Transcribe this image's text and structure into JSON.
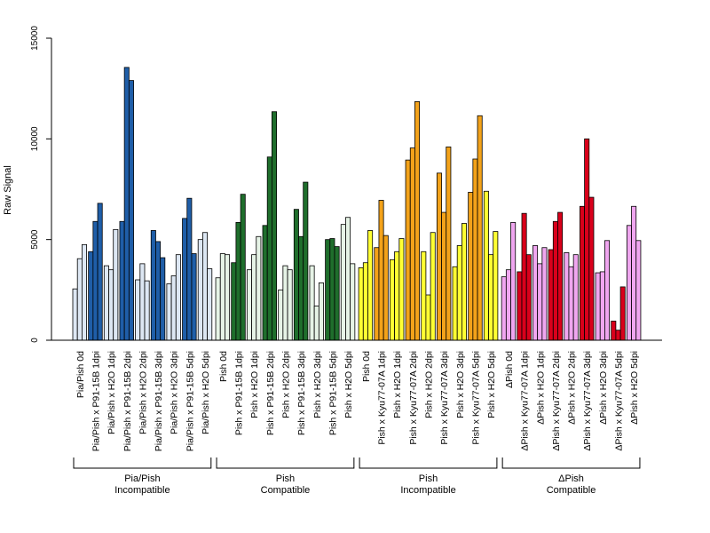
{
  "chart_data": {
    "type": "bar",
    "ylabel": "Raw Signal",
    "ylim": [
      0,
      15000
    ],
    "yticks": [
      0,
      5000,
      10000,
      15000
    ],
    "colors": {
      "light_blue": "#dde7f3",
      "dark_blue": "#1f5ea8",
      "light_green": "#e6f3e6",
      "dark_green": "#1f6e2c",
      "yellow": "#ffff33",
      "orange": "#f3a21a",
      "pink": "#f0a6f0",
      "red": "#d9001b"
    },
    "categories": [
      "Pia/Pish 0d",
      "Pia/Pish x P91-15B 1dpi",
      "Pia/Pish x H2O 1dpi",
      "Pia/Pish x P91-15B 2dpi",
      "Pia/Pish x H2O 2dpi",
      "Pia/Pish x P91-15B 3dpi",
      "Pia/Pish x H2O 3dpi",
      "Pia/Pish x P91-15B 5dpi",
      "Pia/Pish x H2O 5dpi",
      "Pish 0d",
      "Pish x P91-15B 1dpi",
      "Pish x H2O 1dpi",
      "Pish x P91-15B 2dpi",
      "Pish x H2O 2dpi",
      "Pish x P91-15B 3dpi",
      "Pish x H2O 3dpi",
      "Pish x P91-15B 5dpi",
      "Pish x H2O 5dpi",
      "Pish 0d",
      "Pish x Kyu77-07A 1dpi",
      "Pish x H2O 1dpi",
      "Pish x Kyu77-07A 2dpi",
      "Pish x H2O 2dpi",
      "Pish x Kyu77-07A 3dpi",
      "Pish x H2O 3dpi",
      "Pish x Kyu77-07A 5dpi",
      "Pish x H2O 5dpi",
      "ΔPish 0d",
      "ΔPish x Kyu77-07A 1dpi",
      "ΔPish x H2O 1dpi",
      "ΔPish x Kyu77-07A 2dpi",
      "ΔPish x H2O 2dpi",
      "ΔPish x Kyu77-07A 3dpi",
      "ΔPish x H2O 3dpi",
      "ΔPish x Kyu77-07A 5dpi",
      "ΔPish x H2O 5dpi"
    ],
    "category_colors": [
      "light_blue",
      "dark_blue",
      "light_blue",
      "dark_blue",
      "light_blue",
      "dark_blue",
      "light_blue",
      "dark_blue",
      "light_blue",
      "light_green",
      "dark_green",
      "light_green",
      "dark_green",
      "light_green",
      "dark_green",
      "light_green",
      "dark_green",
      "light_green",
      "yellow",
      "orange",
      "yellow",
      "orange",
      "yellow",
      "orange",
      "yellow",
      "orange",
      "yellow",
      "pink",
      "red",
      "pink",
      "red",
      "pink",
      "red",
      "pink",
      "red",
      "pink"
    ],
    "replicate_values": [
      [
        2550,
        4050,
        4750
      ],
      [
        4400,
        5900,
        6800
      ],
      [
        3700,
        3500,
        5500
      ],
      [
        5900,
        13550,
        12900
      ],
      [
        3000,
        3800,
        2950
      ],
      [
        5450,
        4900,
        4100
      ],
      [
        2800,
        3200,
        4250
      ],
      [
        6050,
        7050,
        4300
      ],
      [
        5000,
        5350,
        3550
      ],
      [
        3100,
        4300,
        4250
      ],
      [
        3850,
        5850,
        7250
      ],
      [
        3500,
        4250,
        5150
      ],
      [
        5700,
        9100,
        11350
      ],
      [
        2500,
        3700,
        3500
      ],
      [
        6500,
        5150,
        7850
      ],
      [
        3700,
        1700,
        2850
      ],
      [
        5000,
        5050,
        4650
      ],
      [
        5750,
        6100,
        3800
      ],
      [
        3600,
        3850,
        5450
      ],
      [
        4600,
        6950,
        5200
      ],
      [
        4000,
        4400,
        5050
      ],
      [
        8950,
        9550,
        11850
      ],
      [
        4400,
        2250,
        5350
      ],
      [
        8300,
        6350,
        9600
      ],
      [
        3650,
        4700,
        5800
      ],
      [
        7350,
        9000,
        11150
      ],
      [
        7400,
        4250,
        5400
      ],
      [
        3150,
        3500,
        5850
      ],
      [
        3400,
        6300,
        4250
      ],
      [
        4700,
        3800,
        4600
      ],
      [
        4500,
        5900,
        6350
      ],
      [
        4350,
        3650,
        4250
      ],
      [
        6650,
        10000,
        7100
      ],
      [
        3350,
        3400,
        4950
      ],
      [
        950,
        500,
        2650
      ],
      [
        5700,
        6650,
        4950
      ]
    ],
    "groups": [
      {
        "line1": "Pia/Pish",
        "line2": "Incompatible",
        "start": 0,
        "end": 8
      },
      {
        "line1": "Pish",
        "line2": "Compatible",
        "start": 9,
        "end": 17
      },
      {
        "line1": "Pish",
        "line2": "Incompatible",
        "start": 18,
        "end": 26
      },
      {
        "line1": "ΔPish",
        "line2": "Compatible",
        "start": 27,
        "end": 35
      }
    ]
  }
}
